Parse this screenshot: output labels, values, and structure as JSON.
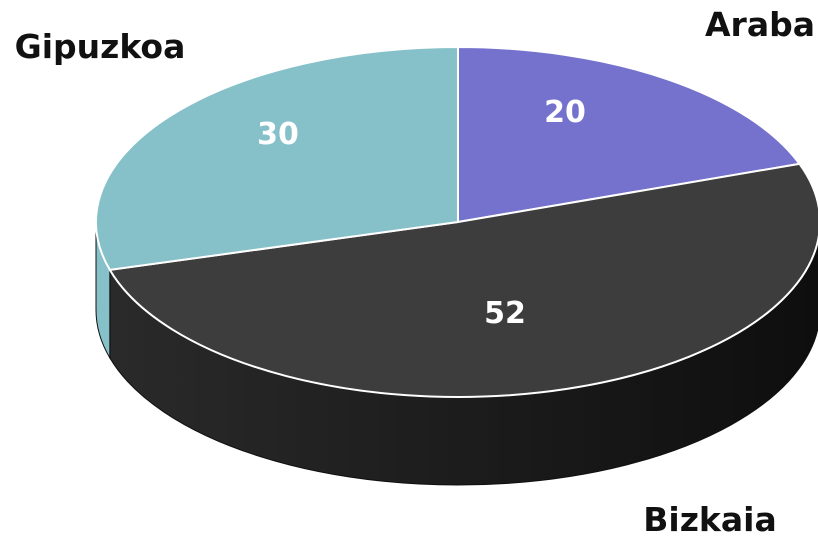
{
  "chart_data": {
    "type": "pie",
    "style": "3d",
    "categories": [
      "Araba",
      "Bizkaia",
      "Gipuzkoa"
    ],
    "values": [
      20,
      52,
      30
    ],
    "colors": [
      "#7472cc",
      "#3d3d3d",
      "#86c1c9"
    ],
    "title": "",
    "legend": "none"
  }
}
